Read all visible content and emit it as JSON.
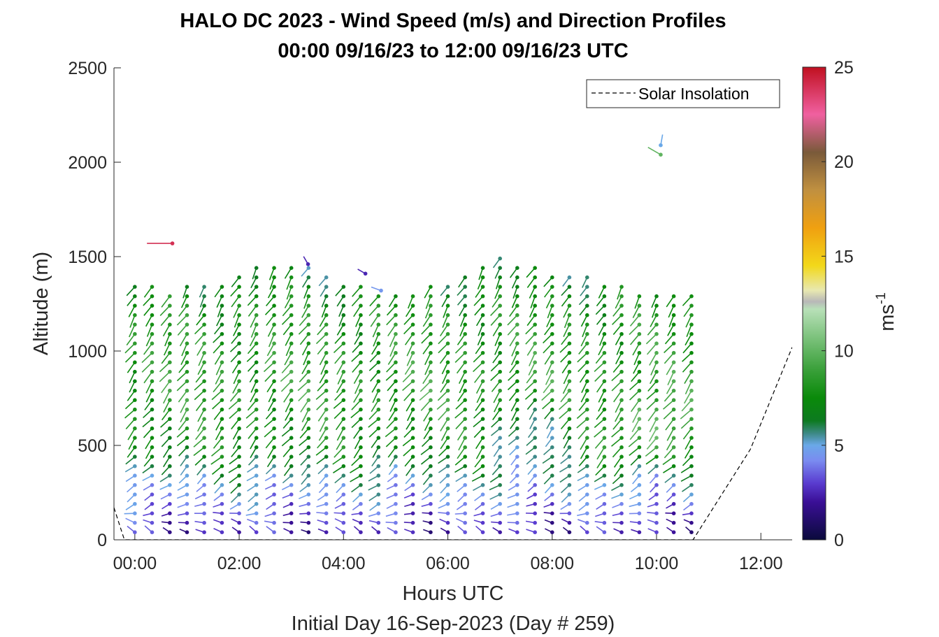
{
  "chart_data": {
    "type": "scatter",
    "title": "HALO DC 2023 - Wind Speed (m/s) and Direction Profiles",
    "subtitle": "00:00 09/16/23 to 12:00 09/16/23  UTC",
    "xlabel": "Hours UTC",
    "xlabel2": "Initial Day 16-Sep-2023 (Day # 259)",
    "ylabel": "Altitude (m)",
    "xlim": [
      -0.4,
      12.6
    ],
    "ylim": [
      0,
      2500
    ],
    "xticks": [
      0,
      2,
      4,
      6,
      8,
      10,
      12
    ],
    "xtick_labels": [
      "00:00",
      "02:00",
      "04:00",
      "06:00",
      "08:00",
      "10:00",
      "12:00"
    ],
    "yticks": [
      0,
      500,
      1000,
      1500,
      2000,
      2500
    ],
    "ytick_labels": [
      "0",
      "500",
      "1000",
      "1500",
      "2000",
      "2500"
    ],
    "colorbar": {
      "label": "ms",
      "label_exponent": "-1",
      "range": [
        0,
        25
      ],
      "ticks": [
        0,
        5,
        10,
        15,
        20,
        25
      ],
      "tick_labels": [
        "0",
        "5",
        "10",
        "15",
        "20",
        "25"
      ],
      "colormap": [
        [
          0,
          "#0a0a3c"
        ],
        [
          2,
          "#3a0f96"
        ],
        [
          3,
          "#5a3cd0"
        ],
        [
          4.2,
          "#7a8cf0"
        ],
        [
          5,
          "#6aa8e8"
        ],
        [
          5.6,
          "#3f8a8a"
        ],
        [
          6.3,
          "#0d7a20"
        ],
        [
          7.5,
          "#0a8a0a"
        ],
        [
          9,
          "#3aa03a"
        ],
        [
          11,
          "#88c888"
        ],
        [
          12.2,
          "#b8e0b8"
        ],
        [
          12.6,
          "#b8b8b8"
        ],
        [
          13.2,
          "#e8e8b0"
        ],
        [
          14.5,
          "#f2d81a"
        ],
        [
          16.5,
          "#f0a010"
        ],
        [
          18.5,
          "#c09040"
        ],
        [
          20.5,
          "#7a5a3a"
        ],
        [
          22.5,
          "#f060a0"
        ],
        [
          25,
          "#c01020"
        ]
      ]
    },
    "legend": {
      "entries": [
        "Solar Insolation"
      ],
      "location": "top-right"
    },
    "solar_insolation": {
      "x": [
        -0.4,
        -0.2,
        0.0,
        10.7,
        11.8,
        12.6
      ],
      "y": [
        170,
        0,
        0,
        0,
        480,
        1020
      ]
    },
    "profiles": {
      "times": [
        0.0,
        0.33,
        0.67,
        1.0,
        1.33,
        1.67,
        2.0,
        2.33,
        2.67,
        3.0,
        3.33,
        3.67,
        4.0,
        4.33,
        4.67,
        5.0,
        5.33,
        5.67,
        6.0,
        6.33,
        6.67,
        7.0,
        7.33,
        7.67,
        8.0,
        8.33,
        8.67,
        9.0,
        9.33,
        9.67,
        10.0,
        10.33,
        10.67
      ],
      "top_altitudes": [
        1350,
        1370,
        1330,
        1350,
        1380,
        1380,
        1420,
        1480,
        1480,
        1450,
        1440,
        1390,
        1380,
        1340,
        1300,
        1330,
        1320,
        1340,
        1380,
        1420,
        1450,
        1520,
        1480,
        1440,
        1420,
        1410,
        1400,
        1350,
        1340,
        1330,
        1320,
        1320,
        1310
      ],
      "altitude_step_m": 50,
      "speed_by_altitude": [
        [
          50,
          2.5
        ],
        [
          150,
          3.5
        ],
        [
          300,
          5.0
        ],
        [
          500,
          7.5
        ],
        [
          800,
          8.5
        ],
        [
          1200,
          8.0
        ],
        [
          1500,
          6.0
        ]
      ],
      "direction_deg_by_altitude": [
        [
          50,
          300
        ],
        [
          200,
          240
        ],
        [
          500,
          220
        ],
        [
          1000,
          215
        ],
        [
          1400,
          210
        ]
      ]
    },
    "isolated_barbs": [
      {
        "x": 0.72,
        "y": 1570,
        "speed": 24,
        "direction_deg": 270
      },
      {
        "x": 10.08,
        "y": 2090,
        "speed": 5,
        "direction_deg": 10
      },
      {
        "x": 10.08,
        "y": 2040,
        "speed": 10,
        "direction_deg": 300
      },
      {
        "x": 4.42,
        "y": 1410,
        "speed": 2.5,
        "direction_deg": 300
      },
      {
        "x": 3.32,
        "y": 1460,
        "speed": 2.5,
        "direction_deg": 330
      },
      {
        "x": 4.72,
        "y": 1320,
        "speed": 4.5,
        "direction_deg": 290
      }
    ]
  }
}
